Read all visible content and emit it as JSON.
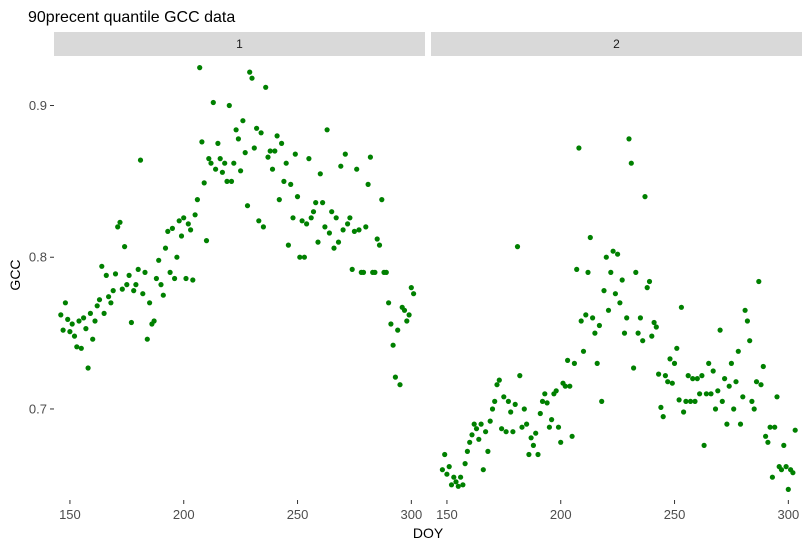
{
  "chart_data": {
    "type": "scatter",
    "title": "90precent quantile GCC data",
    "xlabel": "DOY",
    "ylabel": "GCC",
    "point_color": "#008000",
    "grid": false,
    "y_ticks": [
      0.7,
      0.8,
      0.9
    ],
    "y_tick_labels": [
      "0.7",
      "0.8",
      "0.9"
    ],
    "x_ticks": [
      150,
      200,
      250,
      300
    ],
    "x_tick_labels": [
      "150",
      "200",
      "250",
      "300"
    ],
    "xlim": [
      143,
      306
    ],
    "ylim": [
      0.64,
      0.93
    ],
    "panels": [
      {
        "label": "1",
        "points": [
          [
            146,
            0.762
          ],
          [
            147,
            0.752
          ],
          [
            148,
            0.77
          ],
          [
            149,
            0.759
          ],
          [
            150,
            0.751
          ],
          [
            151,
            0.756
          ],
          [
            152,
            0.748
          ],
          [
            153,
            0.741
          ],
          [
            154,
            0.758
          ],
          [
            155,
            0.74
          ],
          [
            156,
            0.76
          ],
          [
            157,
            0.753
          ],
          [
            158,
            0.727
          ],
          [
            159,
            0.763
          ],
          [
            160,
            0.746
          ],
          [
            161,
            0.758
          ],
          [
            162,
            0.768
          ],
          [
            163,
            0.772
          ],
          [
            164,
            0.794
          ],
          [
            165,
            0.763
          ],
          [
            166,
            0.788
          ],
          [
            167,
            0.774
          ],
          [
            168,
            0.77
          ],
          [
            169,
            0.778
          ],
          [
            170,
            0.789
          ],
          [
            171,
            0.82
          ],
          [
            172,
            0.823
          ],
          [
            173,
            0.779
          ],
          [
            174,
            0.807
          ],
          [
            175,
            0.782
          ],
          [
            176,
            0.788
          ],
          [
            177,
            0.757
          ],
          [
            178,
            0.778
          ],
          [
            179,
            0.782
          ],
          [
            180,
            0.792
          ],
          [
            181,
            0.864
          ],
          [
            182,
            0.776
          ],
          [
            183,
            0.79
          ],
          [
            184,
            0.746
          ],
          [
            185,
            0.77
          ],
          [
            186,
            0.756
          ],
          [
            187,
            0.758
          ],
          [
            188,
            0.786
          ],
          [
            189,
            0.798
          ],
          [
            190,
            0.782
          ],
          [
            191,
            0.775
          ],
          [
            192,
            0.806
          ],
          [
            193,
            0.817
          ],
          [
            194,
            0.79
          ],
          [
            195,
            0.819
          ],
          [
            196,
            0.786
          ],
          [
            197,
            0.8
          ],
          [
            198,
            0.824
          ],
          [
            199,
            0.814
          ],
          [
            200,
            0.826
          ],
          [
            201,
            0.786
          ],
          [
            202,
            0.822
          ],
          [
            203,
            0.818
          ],
          [
            204,
            0.785
          ],
          [
            205,
            0.828
          ],
          [
            206,
            0.838
          ],
          [
            207,
            0.925
          ],
          [
            208,
            0.876
          ],
          [
            209,
            0.849
          ],
          [
            210,
            0.811
          ],
          [
            211,
            0.865
          ],
          [
            212,
            0.862
          ],
          [
            213,
            0.902
          ],
          [
            214,
            0.858
          ],
          [
            215,
            0.875
          ],
          [
            216,
            0.865
          ],
          [
            217,
            0.856
          ],
          [
            218,
            0.862
          ],
          [
            219,
            0.85
          ],
          [
            220,
            0.9
          ],
          [
            221,
            0.85
          ],
          [
            222,
            0.862
          ],
          [
            223,
            0.884
          ],
          [
            224,
            0.878
          ],
          [
            225,
            0.857
          ],
          [
            226,
            0.89
          ],
          [
            227,
            0.869
          ],
          [
            228,
            0.834
          ],
          [
            229,
            0.922
          ],
          [
            230,
            0.918
          ],
          [
            231,
            0.872
          ],
          [
            232,
            0.885
          ],
          [
            233,
            0.824
          ],
          [
            234,
            0.882
          ],
          [
            235,
            0.82
          ],
          [
            236,
            0.912
          ],
          [
            237,
            0.866
          ],
          [
            238,
            0.87
          ],
          [
            239,
            0.858
          ],
          [
            240,
            0.87
          ],
          [
            241,
            0.88
          ],
          [
            242,
            0.838
          ],
          [
            243,
            0.875
          ],
          [
            244,
            0.85
          ],
          [
            245,
            0.862
          ],
          [
            246,
            0.808
          ],
          [
            247,
            0.848
          ],
          [
            248,
            0.826
          ],
          [
            249,
            0.868
          ],
          [
            250,
            0.84
          ],
          [
            251,
            0.8
          ],
          [
            252,
            0.824
          ],
          [
            253,
            0.8
          ],
          [
            254,
            0.822
          ],
          [
            255,
            0.865
          ],
          [
            256,
            0.826
          ],
          [
            257,
            0.83
          ],
          [
            258,
            0.836
          ],
          [
            259,
            0.81
          ],
          [
            260,
            0.855
          ],
          [
            261,
            0.836
          ],
          [
            262,
            0.82
          ],
          [
            263,
            0.884
          ],
          [
            264,
            0.816
          ],
          [
            265,
            0.83
          ],
          [
            266,
            0.806
          ],
          [
            267,
            0.826
          ],
          [
            268,
            0.81
          ],
          [
            269,
            0.86
          ],
          [
            270,
            0.818
          ],
          [
            271,
            0.868
          ],
          [
            272,
            0.822
          ],
          [
            273,
            0.826
          ],
          [
            274,
            0.792
          ],
          [
            275,
            0.817
          ],
          [
            276,
            0.858
          ],
          [
            277,
            0.818
          ],
          [
            278,
            0.79
          ],
          [
            279,
            0.79
          ],
          [
            280,
            0.82
          ],
          [
            281,
            0.848
          ],
          [
            282,
            0.866
          ],
          [
            283,
            0.79
          ],
          [
            284,
            0.79
          ],
          [
            285,
            0.812
          ],
          [
            286,
            0.808
          ],
          [
            287,
            0.838
          ],
          [
            288,
            0.79
          ],
          [
            289,
            0.79
          ],
          [
            290,
            0.77
          ],
          [
            291,
            0.756
          ],
          [
            292,
            0.742
          ],
          [
            293,
            0.721
          ],
          [
            294,
            0.752
          ],
          [
            295,
            0.716
          ],
          [
            296,
            0.767
          ],
          [
            297,
            0.765
          ],
          [
            298,
            0.758
          ],
          [
            299,
            0.762
          ],
          [
            300,
            0.78
          ],
          [
            301,
            0.776
          ]
        ]
      },
      {
        "label": "2",
        "points": [
          [
            148,
            0.66
          ],
          [
            149,
            0.67
          ],
          [
            150,
            0.657
          ],
          [
            151,
            0.662
          ],
          [
            152,
            0.65
          ],
          [
            153,
            0.655
          ],
          [
            154,
            0.652
          ],
          [
            155,
            0.649
          ],
          [
            156,
            0.655
          ],
          [
            157,
            0.65
          ],
          [
            158,
            0.664
          ],
          [
            159,
            0.672
          ],
          [
            160,
            0.678
          ],
          [
            161,
            0.683
          ],
          [
            162,
            0.69
          ],
          [
            163,
            0.687
          ],
          [
            164,
            0.68
          ],
          [
            165,
            0.69
          ],
          [
            166,
            0.66
          ],
          [
            167,
            0.685
          ],
          [
            168,
            0.672
          ],
          [
            169,
            0.692
          ],
          [
            170,
            0.7
          ],
          [
            171,
            0.705
          ],
          [
            172,
            0.716
          ],
          [
            173,
            0.719
          ],
          [
            174,
            0.687
          ],
          [
            175,
            0.708
          ],
          [
            176,
            0.685
          ],
          [
            177,
            0.705
          ],
          [
            178,
            0.698
          ],
          [
            179,
            0.685
          ],
          [
            180,
            0.703
          ],
          [
            181,
            0.807
          ],
          [
            182,
            0.722
          ],
          [
            183,
            0.688
          ],
          [
            184,
            0.7
          ],
          [
            185,
            0.69
          ],
          [
            186,
            0.67
          ],
          [
            187,
            0.681
          ],
          [
            188,
            0.676
          ],
          [
            189,
            0.684
          ],
          [
            190,
            0.67
          ],
          [
            191,
            0.697
          ],
          [
            192,
            0.705
          ],
          [
            193,
            0.71
          ],
          [
            194,
            0.704
          ],
          [
            195,
            0.688
          ],
          [
            196,
            0.693
          ],
          [
            197,
            0.71
          ],
          [
            198,
            0.712
          ],
          [
            199,
            0.688
          ],
          [
            200,
            0.678
          ],
          [
            201,
            0.717
          ],
          [
            202,
            0.715
          ],
          [
            203,
            0.732
          ],
          [
            204,
            0.715
          ],
          [
            205,
            0.682
          ],
          [
            206,
            0.73
          ],
          [
            207,
            0.792
          ],
          [
            208,
            0.872
          ],
          [
            209,
            0.758
          ],
          [
            210,
            0.738
          ],
          [
            211,
            0.762
          ],
          [
            212,
            0.79
          ],
          [
            213,
            0.813
          ],
          [
            214,
            0.76
          ],
          [
            215,
            0.75
          ],
          [
            216,
            0.73
          ],
          [
            217,
            0.755
          ],
          [
            218,
            0.705
          ],
          [
            219,
            0.778
          ],
          [
            220,
            0.8
          ],
          [
            221,
            0.765
          ],
          [
            222,
            0.79
          ],
          [
            223,
            0.804
          ],
          [
            224,
            0.776
          ],
          [
            225,
            0.802
          ],
          [
            226,
            0.77
          ],
          [
            227,
            0.785
          ],
          [
            228,
            0.75
          ],
          [
            229,
            0.76
          ],
          [
            230,
            0.878
          ],
          [
            231,
            0.862
          ],
          [
            232,
            0.727
          ],
          [
            233,
            0.79
          ],
          [
            234,
            0.75
          ],
          [
            235,
            0.76
          ],
          [
            236,
            0.745
          ],
          [
            237,
            0.84
          ],
          [
            238,
            0.78
          ],
          [
            239,
            0.784
          ],
          [
            240,
            0.748
          ],
          [
            241,
            0.757
          ],
          [
            242,
            0.754
          ],
          [
            243,
            0.723
          ],
          [
            244,
            0.701
          ],
          [
            245,
            0.695
          ],
          [
            246,
            0.722
          ],
          [
            247,
            0.718
          ],
          [
            248,
            0.733
          ],
          [
            249,
            0.717
          ],
          [
            250,
            0.73
          ],
          [
            251,
            0.74
          ],
          [
            252,
            0.706
          ],
          [
            253,
            0.767
          ],
          [
            254,
            0.698
          ],
          [
            255,
            0.705
          ],
          [
            256,
            0.722
          ],
          [
            257,
            0.705
          ],
          [
            258,
            0.72
          ],
          [
            259,
            0.705
          ],
          [
            260,
            0.72
          ],
          [
            261,
            0.71
          ],
          [
            262,
            0.722
          ],
          [
            263,
            0.676
          ],
          [
            264,
            0.71
          ],
          [
            265,
            0.73
          ],
          [
            266,
            0.71
          ],
          [
            267,
            0.725
          ],
          [
            268,
            0.7
          ],
          [
            269,
            0.712
          ],
          [
            270,
            0.752
          ],
          [
            271,
            0.705
          ],
          [
            272,
            0.72
          ],
          [
            273,
            0.69
          ],
          [
            274,
            0.715
          ],
          [
            275,
            0.73
          ],
          [
            276,
            0.7
          ],
          [
            277,
            0.718
          ],
          [
            278,
            0.738
          ],
          [
            279,
            0.69
          ],
          [
            280,
            0.708
          ],
          [
            281,
            0.765
          ],
          [
            282,
            0.758
          ],
          [
            283,
            0.745
          ],
          [
            284,
            0.705
          ],
          [
            285,
            0.7
          ],
          [
            286,
            0.718
          ],
          [
            287,
            0.784
          ],
          [
            288,
            0.716
          ],
          [
            289,
            0.728
          ],
          [
            290,
            0.682
          ],
          [
            291,
            0.678
          ],
          [
            292,
            0.688
          ],
          [
            293,
            0.655
          ],
          [
            294,
            0.688
          ],
          [
            295,
            0.708
          ],
          [
            296,
            0.662
          ],
          [
            297,
            0.66
          ],
          [
            298,
            0.676
          ],
          [
            299,
            0.662
          ],
          [
            300,
            0.647
          ],
          [
            301,
            0.66
          ],
          [
            302,
            0.658
          ],
          [
            303,
            0.686
          ]
        ]
      }
    ]
  }
}
